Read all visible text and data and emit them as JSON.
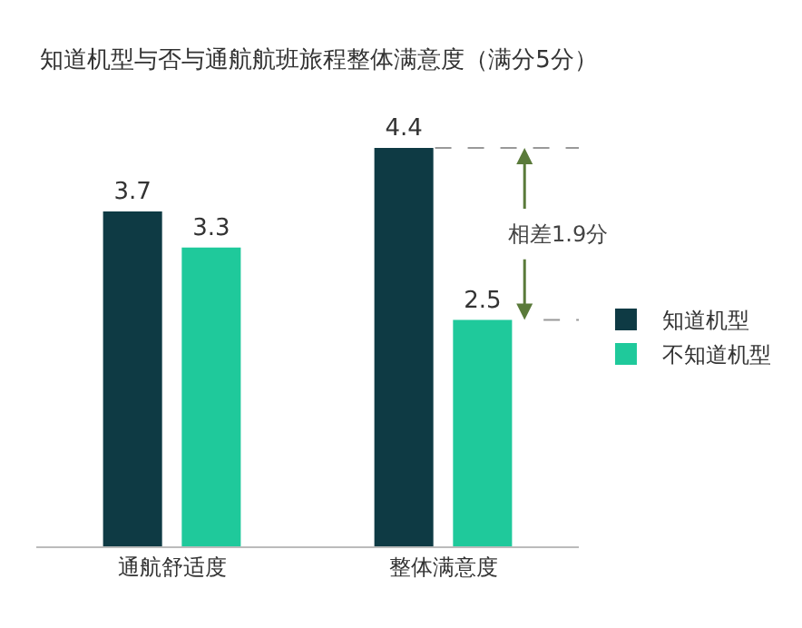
{
  "chart_data": {
    "type": "bar",
    "title": "知道机型与否与通航航班旅程整体满意度（满分5分）",
    "categories": [
      "通航舒适度",
      "整体满意度"
    ],
    "series": [
      {
        "name": "知道机型",
        "color": "#0e3a44",
        "values": [
          3.7,
          4.4
        ]
      },
      {
        "name": "不知道机型",
        "color": "#1fc99b",
        "values": [
          3.3,
          2.5
        ]
      }
    ],
    "data_labels": true,
    "legend": "right",
    "grid": false,
    "tick_labels": "x",
    "annotations": [
      "相差1.9分"
    ]
  }
}
